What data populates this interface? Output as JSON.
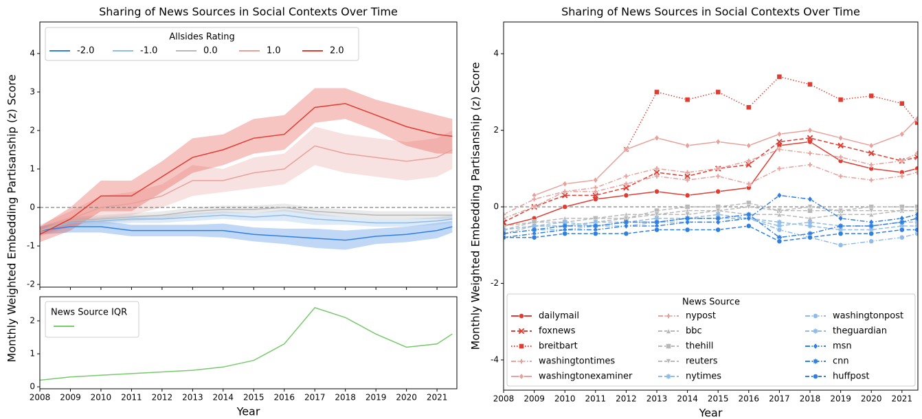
{
  "chart_data": [
    {
      "type": "line",
      "title": "Sharing of News Sources in Social Contexts Over Time",
      "ylabel": "Monthly Weighted Embedding Partisanship (z) Score",
      "legend_title": "Allsides Rating",
      "hline": 0,
      "x": [
        2008,
        2009,
        2010,
        2011,
        2012,
        2013,
        2014,
        2015,
        2016,
        2017,
        2018,
        2019,
        2020,
        2021,
        2021.5
      ],
      "xlim": [
        2008,
        2021.65
      ],
      "ylim": [
        -2.07,
        4.82
      ],
      "yticks": [
        -2,
        -1,
        0,
        1,
        2,
        3,
        4
      ],
      "series": [
        {
          "name": "-2.0",
          "color": "#2f7fe0",
          "values": [
            -0.6,
            -0.5,
            -0.5,
            -0.6,
            -0.6,
            -0.6,
            -0.6,
            -0.7,
            -0.75,
            -0.8,
            -0.85,
            -0.75,
            -0.7,
            -0.6,
            -0.5
          ],
          "lower": [
            -0.7,
            -0.65,
            -0.65,
            -0.75,
            -0.75,
            -0.75,
            -0.78,
            -0.88,
            -0.95,
            -1.05,
            -1.1,
            -0.95,
            -0.9,
            -0.8,
            -0.65
          ],
          "upper": [
            -0.5,
            -0.35,
            -0.35,
            -0.45,
            -0.45,
            -0.45,
            -0.42,
            -0.52,
            -0.55,
            -0.55,
            -0.6,
            -0.55,
            -0.5,
            -0.4,
            -0.35
          ]
        },
        {
          "name": "-1.0",
          "color": "#8fbbe8",
          "values": [
            -0.6,
            -0.4,
            -0.35,
            -0.3,
            -0.3,
            -0.25,
            -0.2,
            -0.25,
            -0.2,
            -0.3,
            -0.35,
            -0.4,
            -0.4,
            -0.35,
            -0.3
          ],
          "lower": [
            -0.7,
            -0.5,
            -0.45,
            -0.4,
            -0.4,
            -0.35,
            -0.3,
            -0.35,
            -0.35,
            -0.45,
            -0.45,
            -0.5,
            -0.5,
            -0.45,
            -0.4
          ],
          "upper": [
            -0.5,
            -0.3,
            -0.25,
            -0.2,
            -0.2,
            -0.15,
            -0.1,
            -0.15,
            -0.05,
            -0.15,
            -0.25,
            -0.3,
            -0.3,
            -0.25,
            -0.2
          ]
        },
        {
          "name": "0.0",
          "color": "#b8b8b8",
          "values": [
            -0.6,
            -0.35,
            -0.3,
            -0.25,
            -0.2,
            -0.1,
            -0.05,
            -0.05,
            0.0,
            -0.1,
            -0.15,
            -0.2,
            -0.2,
            -0.2,
            -0.2
          ],
          "lower": [
            -0.7,
            -0.45,
            -0.4,
            -0.35,
            -0.3,
            -0.2,
            -0.15,
            -0.15,
            -0.1,
            -0.2,
            -0.25,
            -0.3,
            -0.3,
            -0.3,
            -0.3
          ],
          "upper": [
            -0.5,
            -0.25,
            -0.2,
            -0.15,
            -0.1,
            0.0,
            0.05,
            0.05,
            0.1,
            0.0,
            -0.05,
            -0.1,
            -0.1,
            -0.1,
            -0.1
          ]
        },
        {
          "name": "1.0",
          "color": "#e8a09a",
          "values": [
            -0.6,
            -0.3,
            0.0,
            0.1,
            0.3,
            0.7,
            0.7,
            0.9,
            1.0,
            1.6,
            1.4,
            1.3,
            1.2,
            1.3,
            1.5
          ],
          "lower": [
            -0.75,
            -0.5,
            -0.3,
            -0.2,
            0.0,
            0.3,
            0.4,
            0.5,
            0.6,
            1.1,
            0.9,
            0.8,
            0.7,
            0.8,
            1.0
          ],
          "upper": [
            -0.45,
            -0.1,
            0.3,
            0.4,
            0.6,
            1.1,
            1.0,
            1.3,
            1.4,
            2.1,
            1.9,
            1.8,
            1.7,
            1.8,
            2.0
          ]
        },
        {
          "name": "2.0",
          "color": "#e03c31",
          "values": [
            -0.7,
            -0.3,
            0.3,
            0.3,
            0.8,
            1.3,
            1.5,
            1.8,
            1.9,
            2.6,
            2.7,
            2.4,
            2.1,
            1.9,
            1.85
          ],
          "lower": [
            -0.9,
            -0.6,
            -0.1,
            -0.1,
            0.4,
            0.9,
            1.1,
            1.4,
            1.5,
            2.2,
            2.3,
            2.0,
            1.6,
            1.4,
            1.4
          ],
          "upper": [
            -0.5,
            0.0,
            0.7,
            0.7,
            1.2,
            1.8,
            1.9,
            2.3,
            2.4,
            3.1,
            3.1,
            2.8,
            2.6,
            2.4,
            2.3
          ]
        }
      ]
    },
    {
      "type": "line",
      "xlabel": "Year",
      "legend_title": "News Source IQR",
      "x": [
        2008,
        2009,
        2010,
        2011,
        2012,
        2013,
        2014,
        2015,
        2016,
        2017,
        2018,
        2019,
        2020,
        2021,
        2021.5
      ],
      "xlim": [
        2008,
        2021.65
      ],
      "ylim": [
        -0.06,
        2.73
      ],
      "yticks": [
        0,
        1,
        2
      ],
      "xticks": [
        2008,
        2009,
        2010,
        2011,
        2012,
        2013,
        2014,
        2015,
        2016,
        2017,
        2018,
        2019,
        2020,
        2021
      ],
      "series": [
        {
          "color": "#77c96b",
          "values": [
            0.2,
            0.3,
            0.35,
            0.4,
            0.45,
            0.5,
            0.6,
            0.8,
            1.3,
            2.4,
            2.1,
            1.6,
            1.2,
            1.3,
            1.6
          ]
        }
      ]
    },
    {
      "type": "line",
      "title": "Sharing of News Sources in Social Contexts Over Time",
      "xlabel": "Year",
      "ylabel": "Monthly Weighted Embedding Partisanship (z) Score",
      "legend_title": "News Source",
      "hline": 0,
      "x": [
        2008,
        2009,
        2010,
        2011,
        2012,
        2013,
        2014,
        2015,
        2016,
        2017,
        2018,
        2019,
        2020,
        2021,
        2021.5
      ],
      "xlim": [
        2008,
        2021.52
      ],
      "ylim": [
        -4.79,
        4.83
      ],
      "yticks": [
        -4,
        -2,
        0,
        2,
        4
      ],
      "xticks": [
        2008,
        2009,
        2010,
        2011,
        2012,
        2013,
        2014,
        2015,
        2016,
        2017,
        2018,
        2019,
        2020,
        2021
      ],
      "series": [
        {
          "name": "dailymail",
          "color": "#e03c31",
          "dash": "solid",
          "marker": "o",
          "values": [
            -0.5,
            -0.3,
            0.0,
            0.2,
            0.3,
            0.4,
            0.3,
            0.4,
            0.5,
            1.6,
            1.7,
            1.2,
            1.0,
            0.9,
            1.0
          ]
        },
        {
          "name": "foxnews",
          "color": "#e03c31",
          "dash": "dashed",
          "marker": "x",
          "values": [
            -0.4,
            0.0,
            0.3,
            0.3,
            0.5,
            0.9,
            0.8,
            1.0,
            1.1,
            1.7,
            1.8,
            1.6,
            1.4,
            1.2,
            1.3
          ]
        },
        {
          "name": "breitbart",
          "color": "#e03c31",
          "dash": "dotted",
          "marker": "s",
          "values": [
            null,
            null,
            null,
            null,
            1.5,
            3.0,
            2.8,
            3.0,
            2.6,
            3.4,
            3.2,
            2.8,
            2.9,
            2.7,
            2.2
          ]
        },
        {
          "name": "washingtontimes",
          "color": "#e8a09a",
          "dash": "dashdot",
          "marker": "P",
          "values": [
            -0.3,
            0.0,
            0.4,
            0.5,
            0.8,
            1.0,
            0.9,
            1.0,
            1.2,
            1.5,
            1.4,
            1.3,
            1.1,
            1.2,
            1.4
          ]
        },
        {
          "name": "washingtonexaminer",
          "color": "#e8a09a",
          "dash": "solid",
          "marker": "D",
          "values": [
            null,
            0.3,
            0.6,
            0.7,
            1.5,
            1.8,
            1.6,
            1.7,
            1.6,
            1.9,
            2.0,
            1.8,
            1.6,
            1.9,
            2.3
          ]
        },
        {
          "name": "nypost",
          "color": "#e8a09a",
          "dash": "dashdot",
          "marker": "P",
          "values": [
            -0.2,
            0.2,
            0.4,
            0.4,
            0.6,
            0.8,
            0.7,
            0.8,
            0.6,
            1.0,
            1.1,
            0.8,
            0.7,
            0.8,
            0.9
          ]
        },
        {
          "name": "bbc",
          "color": "#b8b8b8",
          "dash": "dashed",
          "marker": "^",
          "values": [
            -0.5,
            -0.4,
            -0.3,
            -0.3,
            -0.2,
            -0.2,
            -0.1,
            -0.1,
            -0.2,
            -0.2,
            -0.3,
            -0.2,
            -0.2,
            -0.1,
            -0.1
          ]
        },
        {
          "name": "thehill",
          "color": "#b8b8b8",
          "dash": "dashed",
          "marker": "s",
          "values": [
            -0.6,
            -0.4,
            -0.4,
            -0.3,
            -0.3,
            -0.1,
            0.0,
            0.0,
            0.1,
            -0.1,
            -0.1,
            -0.1,
            0.0,
            0.0,
            0.0
          ]
        },
        {
          "name": "reuters",
          "color": "#b8b8b8",
          "dash": "dashed",
          "marker": "v",
          "values": [
            -0.7,
            -0.5,
            -0.5,
            -0.4,
            -0.3,
            -0.2,
            -0.2,
            -0.1,
            0.0,
            -0.1,
            0.0,
            -0.1,
            -0.1,
            -0.1,
            -0.1
          ]
        },
        {
          "name": "nytimes",
          "color": "#8fbbe8",
          "dash": "dashed",
          "marker": "*",
          "values": [
            -0.6,
            -0.5,
            -0.5,
            -0.4,
            -0.4,
            -0.3,
            -0.3,
            -0.2,
            -0.3,
            -0.5,
            -0.4,
            -0.5,
            -0.5,
            -0.4,
            -0.4
          ]
        },
        {
          "name": "washingtonpost",
          "color": "#8fbbe8",
          "dash": "dashdot",
          "marker": "o",
          "values": [
            -0.7,
            -0.6,
            -0.6,
            -0.5,
            -0.5,
            -0.4,
            -0.4,
            -0.4,
            -0.3,
            -0.6,
            -0.8,
            -1.0,
            -0.9,
            -0.8,
            -0.7
          ]
        },
        {
          "name": "theguardian",
          "color": "#8fbbe8",
          "dash": "dashed",
          "marker": "*",
          "values": [
            -0.6,
            -0.5,
            -0.4,
            -0.5,
            -0.4,
            -0.4,
            -0.3,
            -0.3,
            -0.3,
            -0.4,
            -0.5,
            -0.6,
            -0.6,
            -0.5,
            -0.5
          ]
        },
        {
          "name": "msn",
          "color": "#2f7fe0",
          "dash": "dashdot",
          "marker": "D",
          "values": [
            -0.8,
            -0.7,
            -0.6,
            -0.6,
            -0.5,
            -0.5,
            -0.4,
            -0.4,
            -0.3,
            0.3,
            0.2,
            -0.3,
            -0.4,
            -0.3,
            -0.2
          ]
        },
        {
          "name": "cnn",
          "color": "#2f7fe0",
          "dash": "dashdot",
          "marker": "*",
          "values": [
            -0.7,
            -0.6,
            -0.5,
            -0.5,
            -0.4,
            -0.4,
            -0.3,
            -0.3,
            -0.2,
            -0.8,
            -0.7,
            -0.5,
            -0.5,
            -0.4,
            -0.3
          ]
        },
        {
          "name": "huffpost",
          "color": "#2f7fe0",
          "dash": "dashed",
          "marker": "o",
          "values": [
            -0.8,
            -0.8,
            -0.7,
            -0.7,
            -0.7,
            -0.6,
            -0.6,
            -0.6,
            -0.5,
            -0.9,
            -0.8,
            -0.7,
            -0.7,
            -0.6,
            -0.6
          ]
        }
      ]
    }
  ]
}
